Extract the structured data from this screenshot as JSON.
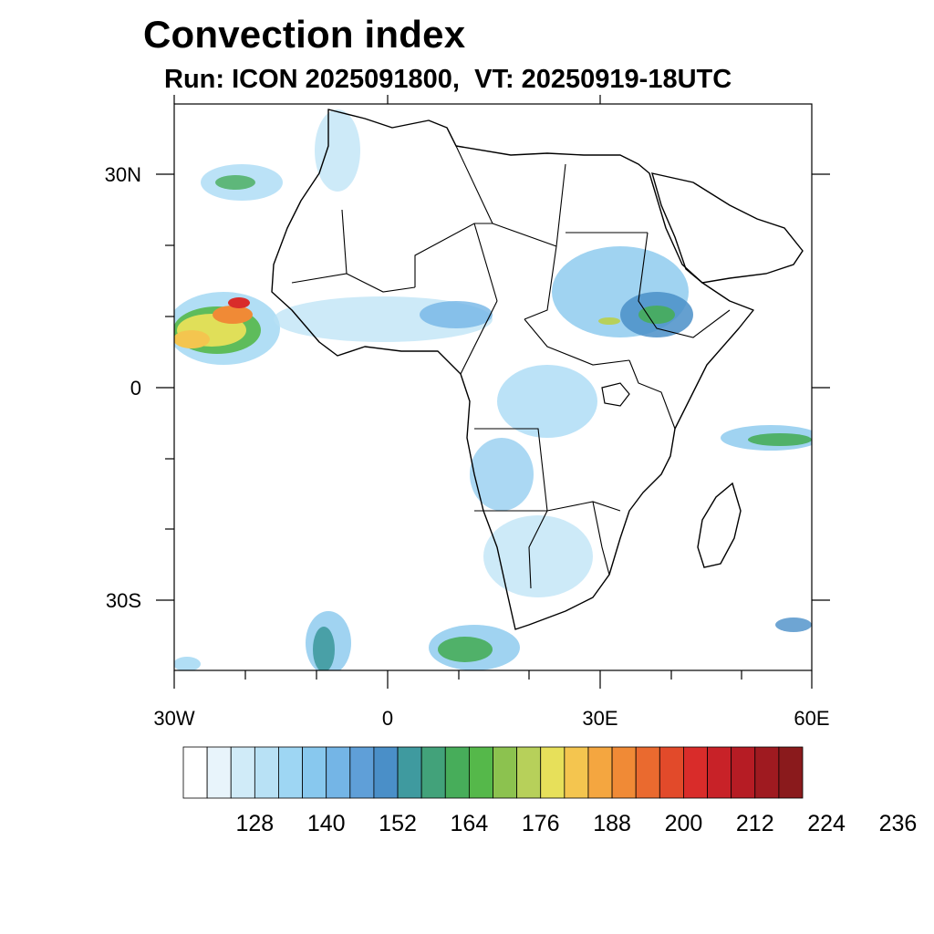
{
  "title": "Convection index",
  "subtitle": "Run: ICON 2025091800,  VT: 20250919-18UTC",
  "map": {
    "extent": {
      "lon_min": -30,
      "lon_max": 60,
      "lat_min": -40,
      "lat_max": 40
    },
    "lat_labels": [
      "30N",
      "0",
      "30S"
    ],
    "lon_labels": [
      "30W",
      "0",
      "30E",
      "60E"
    ]
  },
  "colorbar": {
    "colors": [
      "#ffffff",
      "#e8f4fb",
      "#d0ebf8",
      "#b8e1f5",
      "#9ed6f3",
      "#88c8ee",
      "#74b5e6",
      "#5f9fd8",
      "#4a8fc8",
      "#3f9a9f",
      "#42a27a",
      "#47ad5a",
      "#55b84a",
      "#8cc24f",
      "#b7d05a",
      "#e7e05a",
      "#f4c54f",
      "#f4a640",
      "#f08a36",
      "#ea6a2f",
      "#e24a2a",
      "#d92c2a",
      "#c82228",
      "#b61c24",
      "#9f1a20",
      "#8a1a1c"
    ],
    "labels": [
      "128",
      "140",
      "152",
      "164",
      "176",
      "188",
      "200",
      "212",
      "224",
      "236"
    ]
  }
}
